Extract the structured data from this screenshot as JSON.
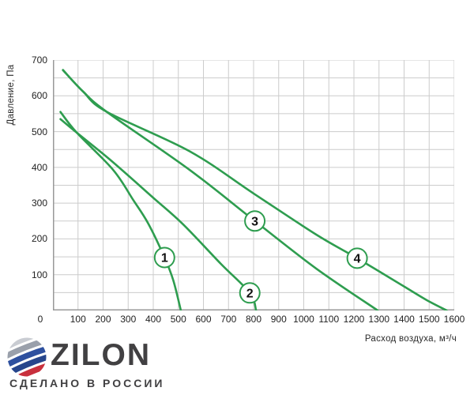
{
  "chart_data": {
    "type": "line",
    "title": "",
    "xlabel": "Расход воздуха, м³/ч",
    "ylabel": "Давление, Па",
    "xlim": [
      0,
      1600
    ],
    "ylim": [
      0,
      700
    ],
    "x_grid_step": 100,
    "y_grid_step": 50,
    "grid": true,
    "legend": "numbered circles on curves",
    "colors": {
      "curve": "#2e9d4f",
      "grid": "#cccccc",
      "axis": "#999999",
      "marker_fill": "#ffffff",
      "marker_text": "#111111"
    },
    "x_tick_labels": [
      "0",
      "100",
      "200",
      "300",
      "400",
      "500",
      "600",
      "700",
      "800",
      "900",
      "1000",
      "1100",
      "1200",
      "1300",
      "1400",
      "1500",
      "1600"
    ],
    "y_tick_labels": [
      "700",
      "600",
      "500",
      "400",
      "300",
      "200",
      "100"
    ],
    "series": [
      {
        "name": "1",
        "label_at": [
          445,
          148
        ],
        "points": [
          [
            30,
            555
          ],
          [
            95,
            497
          ],
          [
            240,
            393
          ],
          [
            320,
            309
          ],
          [
            380,
            243
          ],
          [
            445,
            148
          ],
          [
            480,
            84
          ],
          [
            510,
            0
          ]
        ]
      },
      {
        "name": "2",
        "label_at": [
          785,
          49
        ],
        "points": [
          [
            30,
            535
          ],
          [
            95,
            497
          ],
          [
            230,
            420
          ],
          [
            400,
            315
          ],
          [
            520,
            240
          ],
          [
            670,
            130
          ],
          [
            785,
            49
          ],
          [
            810,
            0
          ]
        ]
      },
      {
        "name": "3",
        "label_at": [
          805,
          250
        ],
        "points": [
          [
            40,
            672
          ],
          [
            120,
            612
          ],
          [
            215,
            555
          ],
          [
            545,
            393
          ],
          [
            805,
            250
          ],
          [
            1050,
            117
          ],
          [
            1295,
            0
          ]
        ]
      },
      {
        "name": "4",
        "label_at": [
          1213,
          146
        ],
        "points": [
          [
            40,
            672
          ],
          [
            120,
            612
          ],
          [
            215,
            555
          ],
          [
            545,
            445
          ],
          [
            800,
            327
          ],
          [
            1050,
            212
          ],
          [
            1213,
            146
          ],
          [
            1400,
            67
          ],
          [
            1490,
            29
          ],
          [
            1570,
            0
          ]
        ]
      }
    ]
  },
  "logo": {
    "brand": "ZILON",
    "tagline": "СДЕЛАНО В РОССИИ",
    "brand_color": "#414042",
    "flag_colors": [
      "#c9ccd2",
      "#9aa0ab",
      "#2e509f",
      "#26458c",
      "#c8303d",
      "#9e2531"
    ]
  }
}
